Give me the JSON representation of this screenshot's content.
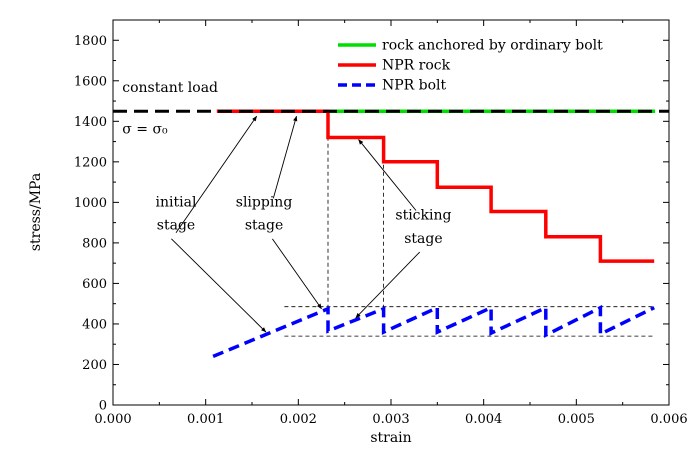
{
  "chart_data": {
    "type": "line",
    "title": "",
    "xlabel": "strain",
    "ylabel": "stress/MPa",
    "xlim": [
      0,
      0.006
    ],
    "ylim": [
      0,
      1900
    ],
    "x_ticks": [
      0,
      0.001,
      0.002,
      0.003,
      0.004,
      0.005,
      0.006
    ],
    "x_tick_labels": [
      "0.000",
      "0.001",
      "0.002",
      "0.003",
      "0.004",
      "0.005",
      "0.006"
    ],
    "y_ticks": [
      0,
      200,
      400,
      600,
      800,
      1000,
      1200,
      1400,
      1600,
      1800
    ],
    "y_tick_labels": [
      "0",
      "200",
      "400",
      "600",
      "800",
      "1000",
      "1200",
      "1400",
      "1600",
      "1800"
    ],
    "grid": false,
    "legend_position": "top-right",
    "series": [
      {
        "name": "rock anchored by ordinary bolt",
        "color": "#00dd00",
        "style": "solid",
        "x": [
          0.00225,
          0.00585
        ],
        "y": [
          1450,
          1450
        ]
      },
      {
        "name": "NPR rock",
        "color": "#ff0000",
        "style": "solid",
        "x": [
          0.00112,
          0.00232,
          0.00232,
          0.00292,
          0.00292,
          0.0035,
          0.0035,
          0.00408,
          0.00408,
          0.00467,
          0.00467,
          0.00526,
          0.00526,
          0.00584
        ],
        "y": [
          1450,
          1450,
          1320,
          1320,
          1200,
          1200,
          1075,
          1075,
          955,
          955,
          830,
          830,
          710,
          710
        ]
      },
      {
        "name": "NPR bolt",
        "color": "#0000ff",
        "style": "dashed",
        "x": [
          0.00108,
          0.00232,
          0.00232,
          0.00292,
          0.00292,
          0.0035,
          0.0035,
          0.00408,
          0.00408,
          0.00467,
          0.00467,
          0.00526,
          0.00526,
          0.00584
        ],
        "y": [
          240,
          475,
          365,
          475,
          360,
          480,
          360,
          480,
          355,
          480,
          345,
          480,
          350,
          480
        ]
      }
    ],
    "reference_lines": [
      {
        "name": "constant load",
        "color": "#000000",
        "style": "dashed",
        "x": [
          0,
          0.006
        ],
        "y": [
          1450,
          1450
        ]
      }
    ],
    "guide_lines": [
      {
        "x": [
          0.00232,
          0.00232
        ],
        "y": [
          475,
          1450
        ]
      },
      {
        "x": [
          0.00292,
          0.00292
        ],
        "y": [
          475,
          1320
        ]
      },
      {
        "x": [
          0.00185,
          0.00585
        ],
        "y": [
          485,
          485
        ]
      },
      {
        "x": [
          0.00185,
          0.00585
        ],
        "y": [
          340,
          340
        ]
      }
    ],
    "annotations": [
      {
        "label": "constant load",
        "x": 0.0001,
        "y": 1545,
        "anchor": "start"
      },
      {
        "label": "σ = σ₀",
        "x": 0.0001,
        "y": 1340,
        "anchor": "start"
      },
      {
        "label": "initial",
        "x": 0.00068,
        "y": 980,
        "anchor": "middle"
      },
      {
        "label": "stage",
        "x": 0.00068,
        "y": 865,
        "anchor": "middle"
      },
      {
        "label": "slipping",
        "x": 0.00163,
        "y": 980,
        "anchor": "middle"
      },
      {
        "label": "stage",
        "x": 0.00163,
        "y": 865,
        "anchor": "middle"
      },
      {
        "label": "sticking",
        "x": 0.00335,
        "y": 915,
        "anchor": "middle"
      },
      {
        "label": "stage",
        "x": 0.00335,
        "y": 800,
        "anchor": "middle"
      }
    ],
    "arrows": [
      {
        "from": [
          0.00068,
          850
        ],
        "to": [
          0.00155,
          1425
        ]
      },
      {
        "from": [
          0.00063,
          820
        ],
        "to": [
          0.00165,
          360
        ]
      },
      {
        "from": [
          0.00173,
          1020
        ],
        "to": [
          0.00198,
          1425
        ]
      },
      {
        "from": [
          0.00172,
          820
        ],
        "to": [
          0.00225,
          475
        ]
      },
      {
        "from": [
          0.00327,
          960
        ],
        "to": [
          0.00265,
          1310
        ]
      },
      {
        "from": [
          0.00331,
          755
        ],
        "to": [
          0.00262,
          430
        ]
      }
    ]
  }
}
